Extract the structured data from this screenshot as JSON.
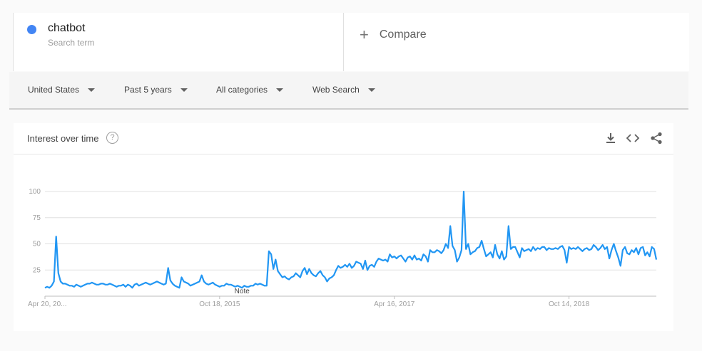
{
  "term": {
    "name": "chatbot",
    "subtitle": "Search term",
    "color": "#4285f4"
  },
  "compare": {
    "label": "Compare"
  },
  "filters": [
    "United States",
    "Past 5 years",
    "All categories",
    "Web Search"
  ],
  "chart_header": {
    "title": "Interest over time",
    "help": "?"
  },
  "icons": [
    "download-icon",
    "embed-code-icon",
    "share-icon"
  ],
  "chart_data": {
    "type": "line",
    "title": "Interest over time",
    "xlabel": "",
    "ylabel": "",
    "ylim": [
      0,
      100
    ],
    "yticks": [
      25,
      50,
      75,
      100
    ],
    "x_tick_labels": [
      "Apr 20, 20...",
      "Oct 18, 2015",
      "Apr 16, 2017",
      "Oct 14, 2018"
    ],
    "x_tick_index": [
      0,
      78,
      156,
      234
    ],
    "annotation": {
      "label": "Note",
      "index": 88
    },
    "grid": true,
    "legend": "none",
    "series": [
      {
        "name": "chatbot",
        "color": "#2196f3",
        "values": [
          8,
          9,
          8,
          10,
          14,
          57,
          22,
          14,
          12,
          12,
          11,
          10,
          10,
          9,
          11,
          10,
          9,
          10,
          11,
          12,
          12,
          13,
          12,
          11,
          11,
          12,
          12,
          11,
          11,
          12,
          11,
          10,
          9,
          10,
          10,
          11,
          9,
          11,
          10,
          8,
          11,
          12,
          10,
          11,
          12,
          13,
          12,
          11,
          12,
          13,
          14,
          13,
          12,
          11,
          12,
          27,
          15,
          12,
          10,
          9,
          8,
          18,
          14,
          13,
          12,
          10,
          11,
          12,
          13,
          14,
          20,
          14,
          12,
          11,
          12,
          13,
          11,
          10,
          9,
          10,
          10,
          12,
          11,
          11,
          10,
          9,
          10,
          9,
          8,
          10,
          9,
          9,
          10,
          10,
          12,
          11,
          12,
          11,
          10,
          10,
          43,
          40,
          26,
          35,
          24,
          21,
          18,
          19,
          17,
          16,
          18,
          19,
          22,
          20,
          18,
          24,
          27,
          21,
          26,
          22,
          20,
          19,
          22,
          24,
          20,
          18,
          14,
          17,
          18,
          20,
          25,
          29,
          27,
          28,
          30,
          28,
          31,
          27,
          29,
          33,
          32,
          31,
          26,
          34,
          25,
          29,
          30,
          28,
          33,
          36,
          35,
          34,
          35,
          33,
          40,
          37,
          38,
          36,
          38,
          39,
          36,
          33,
          37,
          38,
          35,
          39,
          35,
          36,
          34,
          40,
          38,
          33,
          44,
          42,
          42,
          44,
          43,
          41,
          44,
          50,
          46,
          67,
          48,
          44,
          33,
          37,
          44,
          100,
          45,
          50,
          40,
          42,
          43,
          46,
          47,
          53,
          45,
          38,
          40,
          42,
          37,
          49,
          40,
          36,
          43,
          35,
          38,
          67,
          45,
          47,
          47,
          42,
          37,
          46,
          43,
          44,
          45,
          43,
          47,
          44,
          46,
          45,
          47,
          47,
          44,
          46,
          45,
          45,
          46,
          45,
          47,
          48,
          44,
          32,
          47,
          45,
          46,
          45,
          47,
          45,
          43,
          45,
          46,
          44,
          45,
          49,
          47,
          44,
          46,
          49,
          45,
          47,
          36,
          44,
          50,
          43,
          37,
          29,
          44,
          47,
          41,
          40,
          44,
          42,
          46,
          40,
          46,
          47,
          39,
          42,
          38,
          47,
          45,
          35
        ]
      }
    ]
  }
}
